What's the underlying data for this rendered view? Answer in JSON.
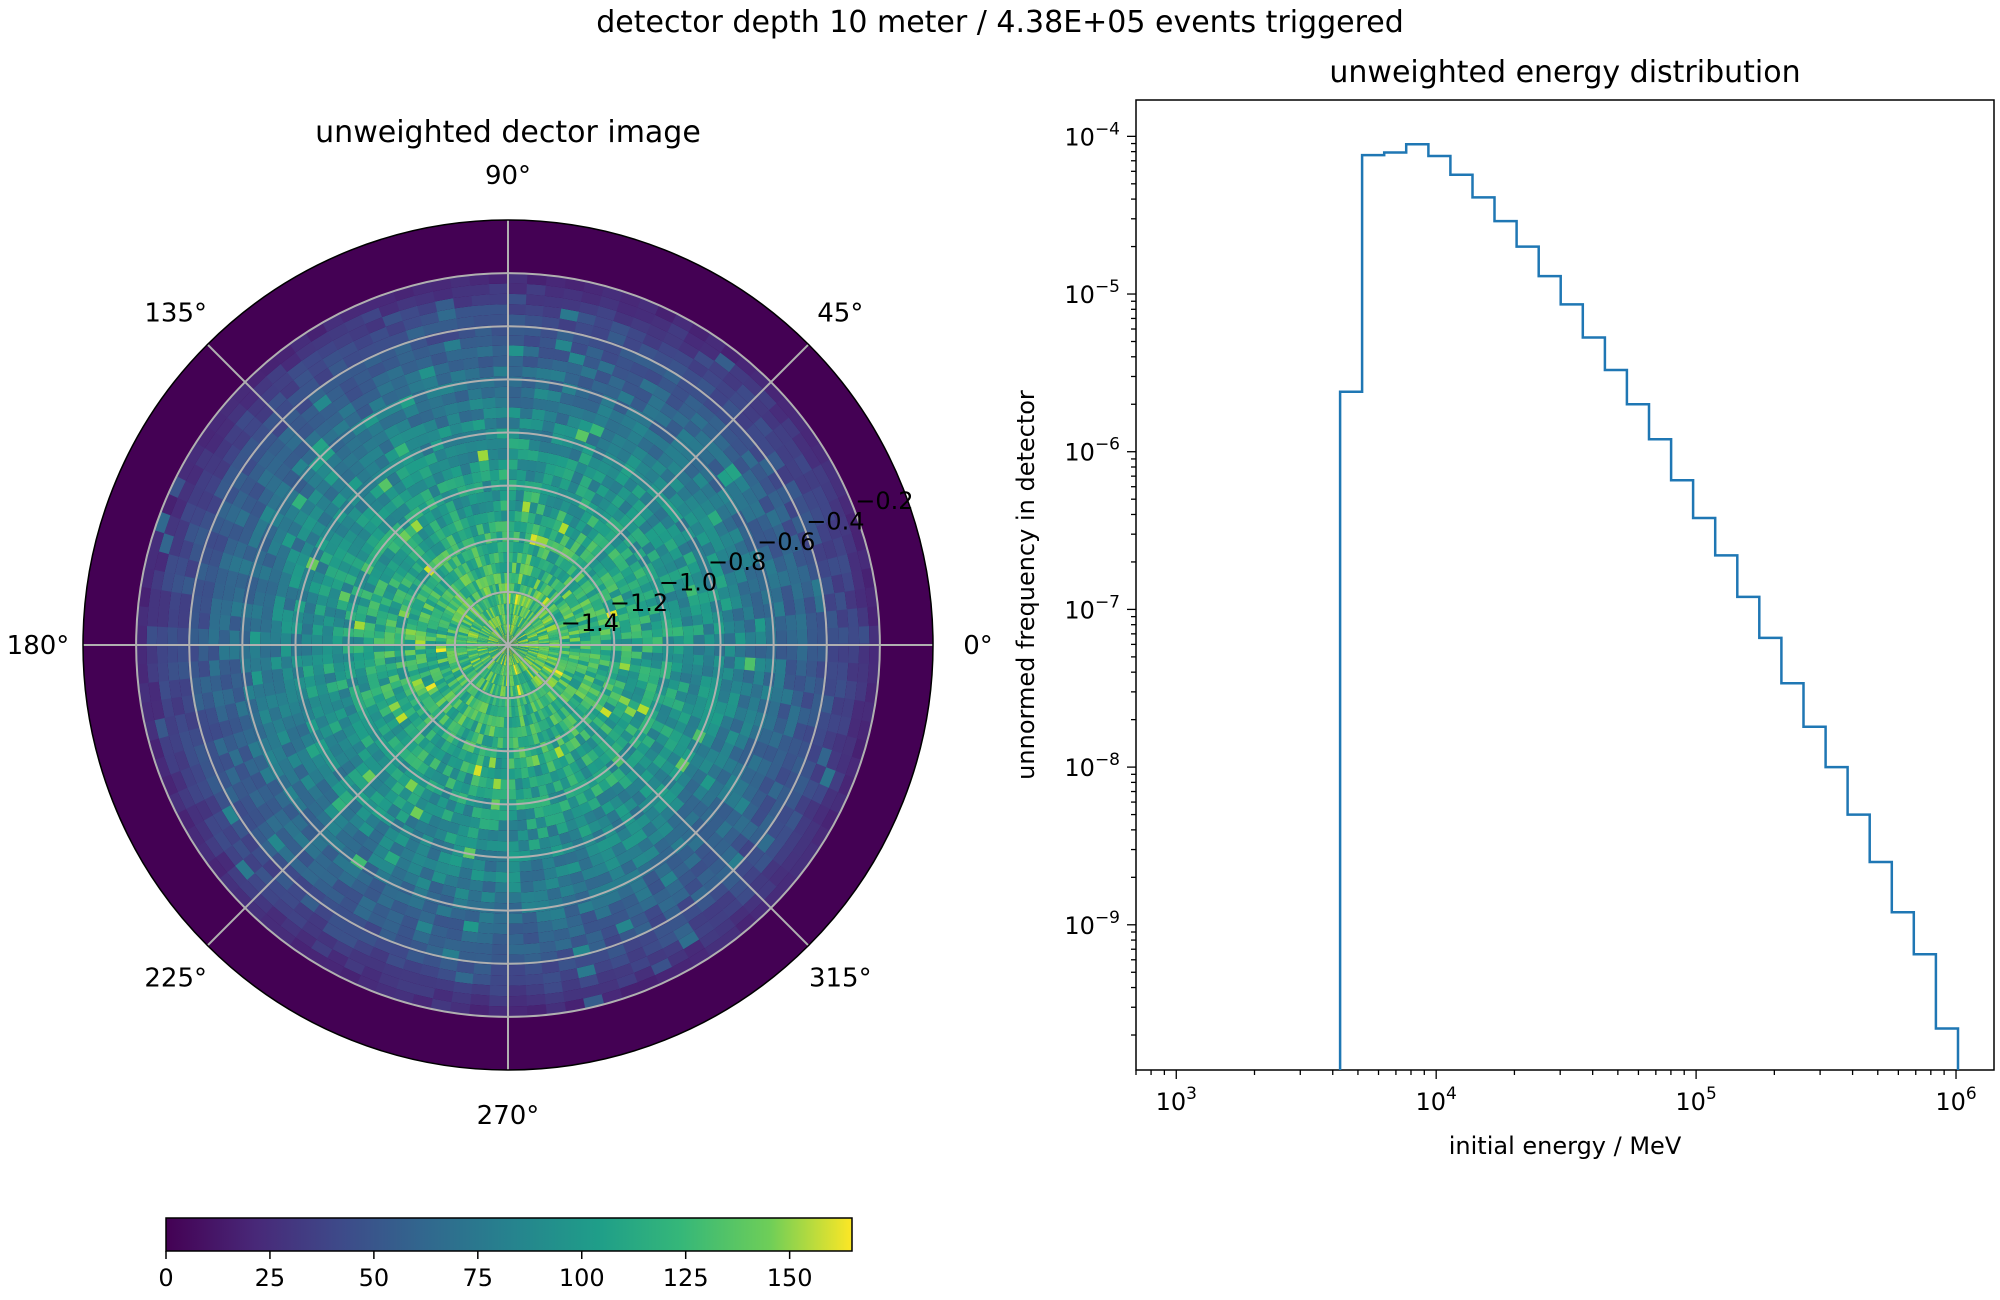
{
  "figure": {
    "suptitle": "detector depth 10 meter / 4.38E+05 events triggered"
  },
  "chart_data": [
    {
      "type": "heatmap",
      "projection": "polar",
      "title": "unweighted dector image",
      "angle_tick_labels": [
        "0°",
        "45°",
        "90°",
        "135°",
        "180°",
        "225°",
        "270°",
        "315°"
      ],
      "radial_tick_labels": [
        "−1.4",
        "−1.2",
        "−1.0",
        "−0.8",
        "−0.6",
        "−0.4",
        "−0.2"
      ],
      "radial_ticks": [
        -1.4,
        -1.2,
        -1.0,
        -0.8,
        -0.6,
        -0.4,
        -0.2
      ],
      "rlim": [
        -1.6,
        0.0
      ],
      "data_extent_r": -0.2,
      "grid": true,
      "colormap": "viridis",
      "colorbar": {
        "orientation": "horizontal",
        "placement": "bottom",
        "range": [
          0,
          165
        ],
        "tick_values": [
          0,
          25,
          50,
          75,
          100,
          125,
          150
        ],
        "tick_labels": [
          "0",
          "25",
          "50",
          "75",
          "100",
          "125",
          "150"
        ]
      },
      "approx_profile": {
        "description_values_by_radius": [
          {
            "r": -1.5,
            "count": 120
          },
          {
            "r": -1.3,
            "count": 108
          },
          {
            "r": -1.1,
            "count": 98
          },
          {
            "r": -0.9,
            "count": 85
          },
          {
            "r": -0.7,
            "count": 70
          },
          {
            "r": -0.5,
            "count": 52
          },
          {
            "r": -0.3,
            "count": 32
          },
          {
            "r": -0.1,
            "count": 0
          }
        ]
      }
    },
    {
      "type": "line",
      "style": "step",
      "title": "unweighted energy distribution",
      "xlabel": "initial energy / MeV",
      "ylabel": "unnormed frequency in detector",
      "xscale": "log",
      "yscale": "log",
      "xlim": [
        700,
        1400000
      ],
      "ylim": [
        1.2e-10,
        0.00017
      ],
      "x_tick_labels": [
        {
          "value": 1000,
          "base": "10",
          "exp": "3"
        },
        {
          "value": 10000,
          "base": "10",
          "exp": "4"
        },
        {
          "value": 100000,
          "base": "10",
          "exp": "5"
        },
        {
          "value": 1000000,
          "base": "10",
          "exp": "6"
        }
      ],
      "y_tick_labels": [
        {
          "value": 1e-09,
          "base": "10",
          "exp": "−9"
        },
        {
          "value": 1e-08,
          "base": "10",
          "exp": "−8"
        },
        {
          "value": 1e-07,
          "base": "10",
          "exp": "−7"
        },
        {
          "value": 1e-06,
          "base": "10",
          "exp": "−6"
        },
        {
          "value": 1e-05,
          "base": "10",
          "exp": "−5"
        },
        {
          "value": 0.0001,
          "base": "10",
          "exp": "−4"
        }
      ],
      "color": "#1f77b4",
      "series": [
        {
          "bin_edges": [
            4270,
            5190,
            6310,
            7670,
            9330,
            11340,
            13790,
            16770,
            20390,
            24790,
            30140,
            36650,
            44570,
            54190,
            65890,
            80110,
            97410,
            118450,
            144030,
            175120,
            212930,
            258910,
            314820,
            382790,
            465450,
            565960,
            688180,
            836790,
            1017480
          ],
          "values": [
            2.4e-06,
            7.6e-05,
            7.9e-05,
            8.9e-05,
            7.5e-05,
            5.7e-05,
            4.1e-05,
            2.9e-05,
            2e-05,
            1.3e-05,
            8.6e-06,
            5.3e-06,
            3.3e-06,
            2e-06,
            1.2e-06,
            6.6e-07,
            3.8e-07,
            2.2e-07,
            1.2e-07,
            6.6e-08,
            3.4e-08,
            1.8e-08,
            1e-08,
            5e-09,
            2.5e-09,
            1.2e-09,
            6.5e-10,
            2.2e-10
          ]
        }
      ]
    }
  ]
}
